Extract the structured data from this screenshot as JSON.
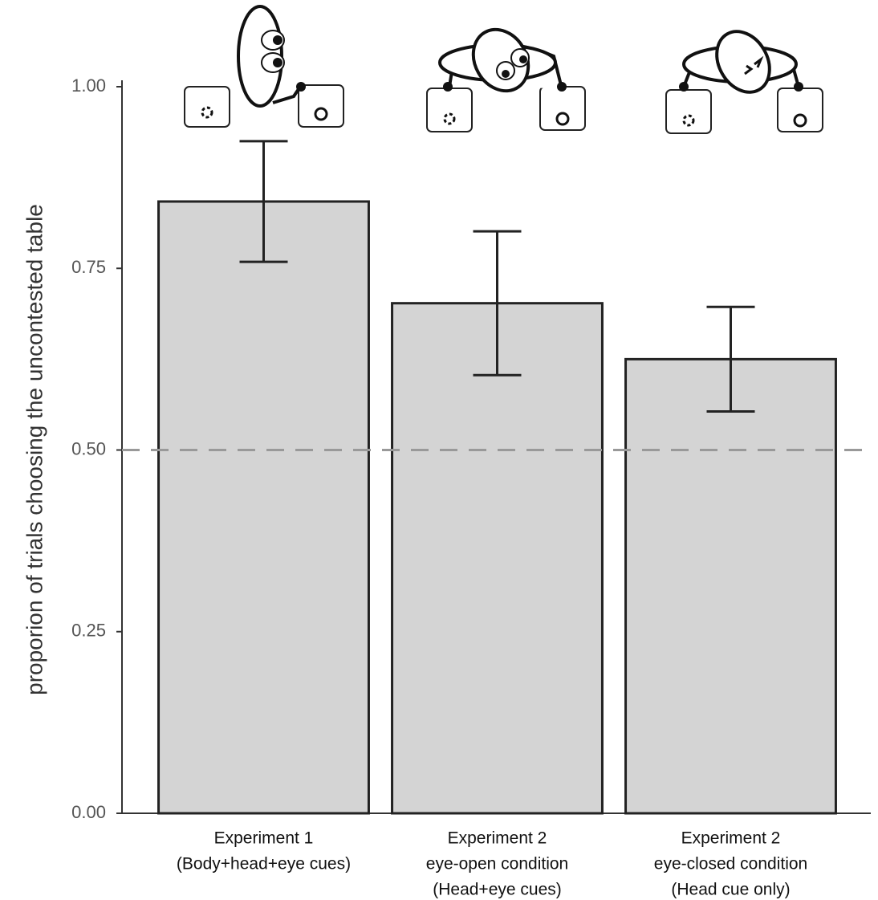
{
  "chart_data": {
    "type": "bar",
    "ylabel": "proporion of trials choosing the uncontested table",
    "categories": [
      [
        "Experiment 1",
        "(Body+head+eye cues)"
      ],
      [
        "Experiment 2",
        "eye-open condition",
        "(Head+eye cues)"
      ],
      [
        "Experiment 2",
        "eye-closed condition",
        "(Head cue only)"
      ]
    ],
    "values": [
      0.842,
      0.702,
      0.625
    ],
    "errors": [
      0.083,
      0.099,
      0.072
    ],
    "color": "#d4d4d4",
    "reference_line": 0.5,
    "ylim": [
      0,
      1
    ],
    "yticks": [
      {
        "value": 0,
        "label": "0.00"
      },
      {
        "value": 0.25,
        "label": "0.25"
      },
      {
        "value": 0.5,
        "label": "0.50"
      },
      {
        "value": 0.75,
        "label": "0.75"
      },
      {
        "value": 1,
        "label": "1.00"
      }
    ]
  }
}
